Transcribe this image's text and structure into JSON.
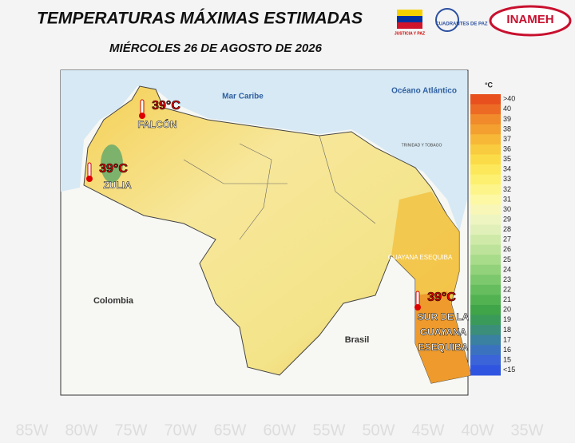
{
  "header": {
    "title": "TEMPERATURAS MÁXIMAS ESTIMADAS",
    "subtitle": "MIÉRCOLES 26 DE AGOSTO DE 2026",
    "logos": [
      "JUSTICIA Y PAZ",
      "CUADRANTES DE PAZ",
      "INAMEH"
    ]
  },
  "map": {
    "labels": [
      "Mar Caribe",
      "Océano Atlántico",
      "Colombia",
      "Brasil",
      "GUAYANA ESEQUIBA",
      "TRINIDAD Y TOBAGO"
    ],
    "annotations": [
      {
        "value": "39°C",
        "place": "FALCÓN"
      },
      {
        "value": "39°C",
        "place": "ZULIA"
      },
      {
        "value": "39°C",
        "place": "SUR DE LA GUAYANA ESEQUIBA"
      }
    ],
    "longitudes": [
      "85W",
      "80W",
      "75W",
      "70W",
      "65W",
      "60W",
      "55W",
      "50W",
      "45W",
      "40W",
      "35W"
    ]
  },
  "legend": {
    "unit": "°C",
    "levels": [
      {
        "label": ">40",
        "color": "#e8501e"
      },
      {
        "label": "40",
        "color": "#ec6a24"
      },
      {
        "label": "39",
        "color": "#f08a2a"
      },
      {
        "label": "38",
        "color": "#f3a030"
      },
      {
        "label": "37",
        "color": "#f7b838"
      },
      {
        "label": "36",
        "color": "#f9cb3e"
      },
      {
        "label": "35",
        "color": "#fbdc48"
      },
      {
        "label": "34",
        "color": "#fce85a"
      },
      {
        "label": "33",
        "color": "#fdf070"
      },
      {
        "label": "32",
        "color": "#fdf58a"
      },
      {
        "label": "31",
        "color": "#fdf8a4"
      },
      {
        "label": "30",
        "color": "#f8f7b8"
      },
      {
        "label": "29",
        "color": "#eef5c0"
      },
      {
        "label": "28",
        "color": "#e0f0b8"
      },
      {
        "label": "27",
        "color": "#cfeaa8"
      },
      {
        "label": "26",
        "color": "#bde39a"
      },
      {
        "label": "25",
        "color": "#a8db8a"
      },
      {
        "label": "24",
        "color": "#92d27a"
      },
      {
        "label": "23",
        "color": "#7cc86c"
      },
      {
        "label": "22",
        "color": "#66bd5e"
      },
      {
        "label": "21",
        "color": "#52b252"
      },
      {
        "label": "20",
        "color": "#40a448"
      },
      {
        "label": "19",
        "color": "#3a9a5a"
      },
      {
        "label": "18",
        "color": "#3a8e7a"
      },
      {
        "label": "17",
        "color": "#3a80a0"
      },
      {
        "label": "16",
        "color": "#3a72c0"
      },
      {
        "label": "15",
        "color": "#3a64d8"
      },
      {
        "label": "<15",
        "color": "#2f55e0"
      }
    ]
  }
}
